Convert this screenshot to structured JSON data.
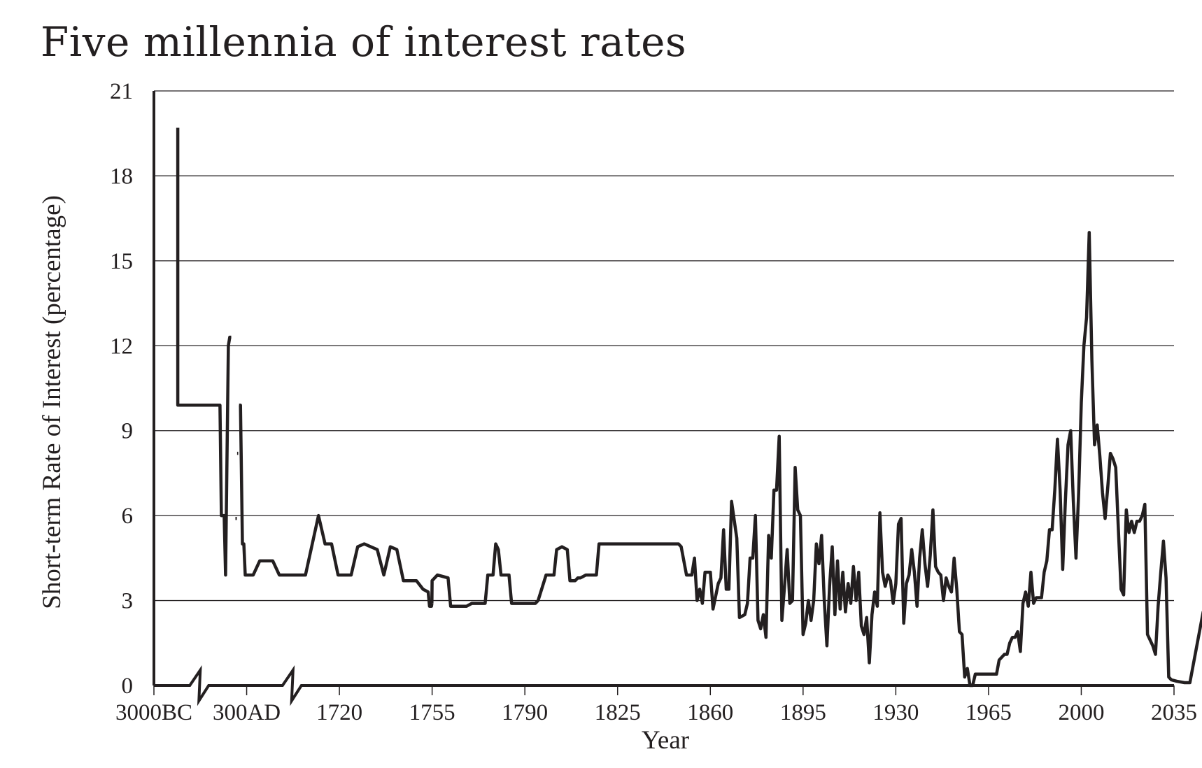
{
  "chart_data": {
    "type": "line",
    "title": "Five millennia of interest rates",
    "xlabel": "Year",
    "ylabel": "Short-term Rate of Interest (percentage)",
    "ylim": [
      0,
      21
    ],
    "yticks": [
      0,
      3,
      6,
      9,
      12,
      15,
      18,
      21
    ],
    "xticks": [
      "3000BC",
      "300AD",
      "1720",
      "1755",
      "1790",
      "1825",
      "1860",
      "1895",
      "1930",
      "1965",
      "2000",
      "2035"
    ],
    "axis_breaks": [
      "3000BC–300AD",
      "300AD–1720"
    ],
    "grid": "horizontal",
    "line_color": "#231f20",
    "series": [
      {
        "segments": [
          [
            [
              "-2150",
              19.7
            ],
            [
              "-2150",
              9.9
            ],
            [
              "-1500",
              9.9
            ],
            [
              "-1400",
              9.9
            ],
            [
              "-1300",
              9.9
            ],
            [
              "-1200",
              9.9
            ],
            [
              "-1100",
              9.9
            ],
            [
              "-1000",
              9.9
            ],
            [
              "-900",
              9.9
            ],
            [
              "-800",
              9.9
            ],
            [
              "-700",
              9.9
            ],
            [
              "-650",
              9.9
            ],
            [
              "-600",
              6.0
            ],
            [
              "-550",
              6.0
            ],
            [
              "-500",
              6.0
            ],
            [
              "-450",
              3.9
            ],
            [
              "-350",
              12.0
            ],
            [
              "-300",
              12.3
            ],
            [
              "-250",
              12.3
            ]
          ],
          [
            [
              "-100",
              5.9
            ],
            [
              "-50",
              5.9
            ]
          ],
          [
            [
              "-40",
              8.2
            ],
            [
              "0",
              8.2
            ]
          ]
        ]
      },
      {
        "segments": [
          [
            [
              "30",
              9.9
            ],
            [
              "80",
              9.9
            ],
            [
              "150",
              5.0
            ],
            [
              "200",
              5.0
            ],
            [
              "250",
              3.9
            ],
            [
              "350",
              3.9
            ],
            [
              "400",
              4.4
            ],
            [
              "500",
              4.4
            ],
            [
              "550",
              3.9
            ],
            [
              "650",
              3.9
            ],
            [
              "750",
              3.9
            ],
            [
              "850",
              6.0
            ],
            [
              "900",
              5.0
            ],
            [
              "950",
              5.0
            ],
            [
              "1000",
              3.9
            ],
            [
              "1100",
              3.9
            ],
            [
              "1150",
              4.9
            ],
            [
              "1200",
              5.0
            ],
            [
              "1250",
              4.9
            ],
            [
              "1300",
              4.8
            ],
            [
              "1350",
              3.9
            ],
            [
              "1400",
              4.9
            ],
            [
              "1450",
              4.8
            ],
            [
              "1500",
              3.7
            ],
            [
              "1550",
              3.7
            ],
            [
              "1600",
              3.7
            ],
            [
              "1650",
              3.4
            ],
            [
              "1690",
              3.3
            ],
            [
              "1700",
              2.8
            ],
            [
              "1710",
              2.8
            ],
            [
              "1715",
              2.8
            ],
            [
              "1718",
              2.9
            ]
          ]
        ]
      },
      {
        "segments": [
          [
            [
              "1718",
              2.9
            ],
            [
              "1720",
              3.7
            ],
            [
              "1722",
              3.9
            ],
            [
              "1726",
              3.8
            ],
            [
              "1727",
              2.8
            ],
            [
              "1730",
              2.8
            ],
            [
              "1733",
              2.8
            ],
            [
              "1735",
              2.9
            ],
            [
              "1740",
              2.9
            ],
            [
              "1741",
              3.9
            ],
            [
              "1743",
              3.9
            ],
            [
              "1744",
              5.0
            ],
            [
              "1745",
              4.8
            ],
            [
              "1746",
              3.9
            ],
            [
              "1749",
              3.9
            ],
            [
              "1750",
              2.9
            ],
            [
              "1755",
              2.9
            ],
            [
              "1757",
              2.9
            ],
            [
              "1759",
              2.9
            ],
            [
              "1760",
              3.0
            ],
            [
              "1762",
              3.6
            ],
            [
              "1763",
              3.9
            ],
            [
              "1766",
              3.9
            ],
            [
              "1767",
              4.8
            ],
            [
              "1769",
              4.9
            ],
            [
              "1771",
              4.8
            ],
            [
              "1772",
              3.7
            ],
            [
              "1774",
              3.7
            ],
            [
              "1775",
              3.8
            ],
            [
              "1776",
              3.8
            ],
            [
              "1778",
              3.9
            ],
            [
              "1782",
              3.9
            ],
            [
              "1783",
              5.0
            ],
            [
              "1800",
              5.0
            ],
            [
              "1813",
              5.0
            ],
            [
              "1814",
              4.9
            ],
            [
              "1816",
              3.9
            ],
            [
              "1818",
              3.9
            ],
            [
              "1819",
              4.5
            ],
            [
              "1820",
              3.0
            ],
            [
              "1821",
              3.4
            ],
            [
              "1822",
              2.9
            ],
            [
              "1823",
              4.0
            ],
            [
              "1825",
              4.0
            ],
            [
              "1826",
              2.7
            ],
            [
              "1828",
              3.6
            ],
            [
              "1829",
              3.8
            ],
            [
              "1830",
              5.5
            ],
            [
              "1831",
              3.4
            ],
            [
              "1832",
              3.4
            ],
            [
              "1833",
              6.5
            ],
            [
              "1835",
              5.2
            ],
            [
              "1836",
              2.4
            ],
            [
              "1838",
              2.5
            ],
            [
              "1839",
              2.9
            ],
            [
              "1840",
              4.5
            ],
            [
              "1841",
              4.5
            ],
            [
              "1842",
              6.0
            ],
            [
              "1843",
              2.3
            ],
            [
              "1844",
              2.0
            ],
            [
              "1845",
              2.5
            ],
            [
              "1846",
              1.7
            ],
            [
              "1847",
              5.3
            ],
            [
              "1848",
              4.5
            ],
            [
              "1849",
              6.9
            ],
            [
              "1850",
              6.9
            ],
            [
              "1851",
              8.8
            ],
            [
              "1852",
              2.3
            ],
            [
              "1853",
              3.5
            ],
            [
              "1854",
              4.8
            ],
            [
              "1855",
              2.9
            ],
            [
              "1856",
              3.0
            ],
            [
              "1857",
              7.7
            ],
            [
              "1858",
              6.2
            ],
            [
              "1859",
              6.0
            ],
            [
              "1860",
              1.8
            ],
            [
              "1861",
              2.2
            ],
            [
              "1862",
              3.0
            ],
            [
              "1863",
              2.3
            ],
            [
              "1864",
              3.0
            ],
            [
              "1865",
              5.0
            ],
            [
              "1866",
              4.3
            ],
            [
              "1867",
              5.3
            ],
            [
              "1868",
              3.0
            ],
            [
              "1869",
              1.4
            ],
            [
              "1870",
              3.5
            ],
            [
              "1871",
              4.9
            ],
            [
              "1872",
              2.5
            ],
            [
              "1873",
              4.4
            ],
            [
              "1874",
              2.7
            ],
            [
              "1875",
              4.0
            ],
            [
              "1876",
              2.6
            ],
            [
              "1877",
              3.6
            ],
            [
              "1878",
              2.9
            ],
            [
              "1879",
              4.2
            ],
            [
              "1880",
              3.0
            ],
            [
              "1881",
              4.0
            ],
            [
              "1882",
              2.1
            ],
            [
              "1883",
              1.8
            ],
            [
              "1884",
              2.4
            ],
            [
              "1885",
              0.8
            ],
            [
              "1886",
              2.5
            ],
            [
              "1887",
              3.3
            ],
            [
              "1888",
              2.8
            ],
            [
              "1889",
              6.1
            ],
            [
              "1890",
              4.0
            ],
            [
              "1891",
              3.5
            ],
            [
              "1892",
              3.9
            ],
            [
              "1893",
              3.7
            ],
            [
              "1894",
              2.9
            ],
            [
              "1895",
              3.6
            ],
            [
              "1896",
              5.7
            ],
            [
              "1897",
              5.9
            ],
            [
              "1898",
              2.2
            ],
            [
              "1899",
              3.6
            ],
            [
              "1900",
              3.9
            ],
            [
              "1901",
              4.8
            ],
            [
              "1902",
              4.0
            ],
            [
              "1903",
              2.8
            ],
            [
              "1904",
              4.5
            ],
            [
              "1905",
              5.5
            ],
            [
              "1906",
              4.3
            ],
            [
              "1907",
              3.5
            ],
            [
              "1908",
              4.6
            ],
            [
              "1909",
              6.2
            ],
            [
              "1910",
              4.2
            ],
            [
              "1911",
              4.0
            ],
            [
              "1912",
              3.9
            ],
            [
              "1913",
              3.0
            ],
            [
              "1914",
              3.8
            ],
            [
              "1915",
              3.5
            ],
            [
              "1916",
              3.3
            ],
            [
              "1917",
              4.5
            ],
            [
              "1918",
              3.4
            ],
            [
              "1919",
              1.9
            ],
            [
              "1920",
              1.8
            ],
            [
              "1921",
              0.3
            ],
            [
              "1922",
              0.6
            ],
            [
              "1923",
              0.0
            ],
            [
              "1924",
              0.0
            ],
            [
              "1925",
              0.4
            ],
            [
              "1930",
              0.4
            ],
            [
              "1933",
              0.4
            ],
            [
              "1934",
              0.9
            ],
            [
              "1936",
              1.1
            ],
            [
              "1937",
              1.1
            ],
            [
              "1938",
              1.5
            ],
            [
              "1939",
              1.7
            ],
            [
              "1940",
              1.7
            ],
            [
              "1941",
              1.9
            ],
            [
              "1942",
              1.2
            ],
            [
              "1943",
              2.9
            ],
            [
              "1944",
              3.3
            ],
            [
              "1945",
              2.8
            ],
            [
              "1946",
              4.0
            ],
            [
              "1947",
              2.9
            ],
            [
              "1948",
              3.1
            ],
            [
              "1950",
              3.1
            ],
            [
              "1951",
              4.0
            ],
            [
              "1952",
              4.4
            ],
            [
              "1953",
              5.5
            ],
            [
              "1954",
              5.5
            ],
            [
              "1955",
              6.9
            ],
            [
              "1956",
              8.7
            ],
            [
              "1957",
              6.9
            ],
            [
              "1958",
              4.1
            ],
            [
              "1959",
              6.5
            ],
            [
              "1960",
              8.5
            ],
            [
              "1961",
              9.0
            ],
            [
              "1962",
              6.5
            ],
            [
              "1963",
              4.5
            ],
            [
              "1964",
              6.8
            ],
            [
              "1965",
              10.0
            ],
            [
              "1966",
              12.0
            ],
            [
              "1967",
              13.0
            ],
            [
              "1968",
              16.0
            ],
            [
              "1969",
              11.5
            ],
            [
              "1970",
              8.5
            ],
            [
              "1971",
              9.2
            ],
            [
              "1972",
              8.1
            ],
            [
              "1973",
              6.8
            ],
            [
              "1974",
              5.9
            ],
            [
              "1975",
              7.0
            ],
            [
              "1976",
              8.2
            ],
            [
              "1977",
              8.0
            ],
            [
              "1978",
              7.7
            ],
            [
              "1979",
              5.5
            ],
            [
              "1980",
              3.4
            ],
            [
              "1981",
              3.2
            ],
            [
              "1982",
              6.2
            ],
            [
              "1983",
              5.4
            ],
            [
              "1984",
              5.8
            ],
            [
              "1985",
              5.4
            ],
            [
              "1986",
              5.8
            ],
            [
              "1987",
              5.8
            ],
            [
              "1988",
              6.0
            ],
            [
              "1989",
              6.4
            ],
            [
              "1990",
              1.8
            ],
            [
              "1992",
              1.4
            ],
            [
              "1993",
              1.1
            ],
            [
              "1994",
              2.8
            ],
            [
              "1995",
              4.0
            ],
            [
              "1996",
              5.1
            ],
            [
              "1997",
              3.8
            ],
            [
              "1998",
              0.3
            ],
            [
              "1999",
              0.2
            ],
            [
              "2001",
              0.15
            ],
            [
              "2004",
              0.1
            ],
            [
              "2006",
              0.1
            ],
            [
              "2009",
              1.6
            ],
            [
              "2011",
              2.6
            ],
            [
              "2012",
              1.6
            ],
            [
              "2013",
              0.1
            ],
            [
              "2015",
              0.1
            ],
            [
              "2016",
              0.1
            ]
          ]
        ]
      }
    ]
  }
}
